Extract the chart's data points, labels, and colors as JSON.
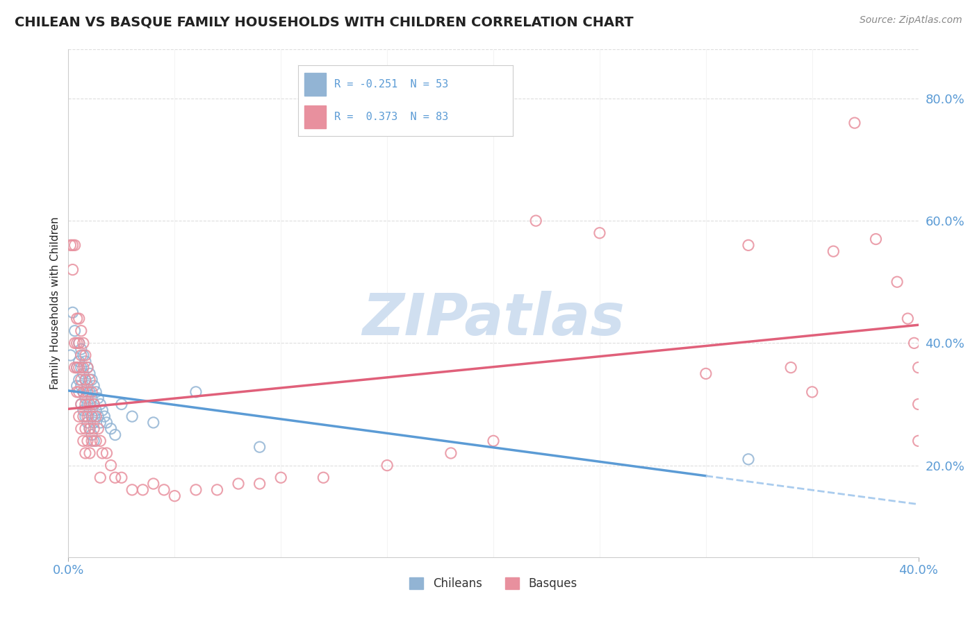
{
  "title": "CHILEAN VS BASQUE FAMILY HOUSEHOLDS WITH CHILDREN CORRELATION CHART",
  "source": "Source: ZipAtlas.com",
  "ylabel": "Family Households with Children",
  "ylabel_right_ticks": [
    "20.0%",
    "40.0%",
    "60.0%",
    "80.0%"
  ],
  "ylabel_right_vals": [
    0.2,
    0.4,
    0.6,
    0.8
  ],
  "xlim": [
    0.0,
    0.4
  ],
  "ylim": [
    0.05,
    0.88
  ],
  "color_chilean": "#92b4d4",
  "color_basque": "#e8909e",
  "line_color_chilean_solid": "#5b9bd5",
  "line_color_chilean_dash": "#aaccee",
  "line_color_basque": "#e0607a",
  "watermark": "ZIPatlas",
  "watermark_color": "#d0dff0",
  "watermark_fontsize": 60,
  "title_color": "#222222",
  "title_fontsize": 14,
  "tick_color": "#5b9bd5",
  "grid_color": "#dddddd",
  "chilean_points": [
    [
      0.001,
      0.38
    ],
    [
      0.002,
      0.45
    ],
    [
      0.003,
      0.42
    ],
    [
      0.004,
      0.36
    ],
    [
      0.004,
      0.33
    ],
    [
      0.005,
      0.4
    ],
    [
      0.005,
      0.37
    ],
    [
      0.005,
      0.34
    ],
    [
      0.006,
      0.39
    ],
    [
      0.006,
      0.36
    ],
    [
      0.006,
      0.33
    ],
    [
      0.006,
      0.3
    ],
    [
      0.007,
      0.38
    ],
    [
      0.007,
      0.35
    ],
    [
      0.007,
      0.32
    ],
    [
      0.007,
      0.29
    ],
    [
      0.008,
      0.37
    ],
    [
      0.008,
      0.34
    ],
    [
      0.008,
      0.31
    ],
    [
      0.008,
      0.28
    ],
    [
      0.009,
      0.36
    ],
    [
      0.009,
      0.33
    ],
    [
      0.009,
      0.3
    ],
    [
      0.009,
      0.27
    ],
    [
      0.01,
      0.35
    ],
    [
      0.01,
      0.32
    ],
    [
      0.01,
      0.29
    ],
    [
      0.01,
      0.26
    ],
    [
      0.011,
      0.34
    ],
    [
      0.011,
      0.31
    ],
    [
      0.011,
      0.28
    ],
    [
      0.011,
      0.25
    ],
    [
      0.012,
      0.33
    ],
    [
      0.012,
      0.3
    ],
    [
      0.012,
      0.27
    ],
    [
      0.012,
      0.24
    ],
    [
      0.013,
      0.32
    ],
    [
      0.013,
      0.29
    ],
    [
      0.014,
      0.31
    ],
    [
      0.014,
      0.28
    ],
    [
      0.015,
      0.3
    ],
    [
      0.015,
      0.27
    ],
    [
      0.016,
      0.29
    ],
    [
      0.017,
      0.28
    ],
    [
      0.018,
      0.27
    ],
    [
      0.02,
      0.26
    ],
    [
      0.022,
      0.25
    ],
    [
      0.025,
      0.3
    ],
    [
      0.03,
      0.28
    ],
    [
      0.04,
      0.27
    ],
    [
      0.06,
      0.32
    ],
    [
      0.09,
      0.23
    ],
    [
      0.32,
      0.21
    ]
  ],
  "basque_points": [
    [
      0.001,
      0.56
    ],
    [
      0.002,
      0.56
    ],
    [
      0.002,
      0.52
    ],
    [
      0.003,
      0.56
    ],
    [
      0.003,
      0.4
    ],
    [
      0.003,
      0.36
    ],
    [
      0.004,
      0.44
    ],
    [
      0.004,
      0.4
    ],
    [
      0.004,
      0.36
    ],
    [
      0.004,
      0.32
    ],
    [
      0.005,
      0.44
    ],
    [
      0.005,
      0.4
    ],
    [
      0.005,
      0.36
    ],
    [
      0.005,
      0.32
    ],
    [
      0.005,
      0.28
    ],
    [
      0.006,
      0.42
    ],
    [
      0.006,
      0.38
    ],
    [
      0.006,
      0.34
    ],
    [
      0.006,
      0.3
    ],
    [
      0.006,
      0.26
    ],
    [
      0.007,
      0.4
    ],
    [
      0.007,
      0.36
    ],
    [
      0.007,
      0.32
    ],
    [
      0.007,
      0.28
    ],
    [
      0.007,
      0.24
    ],
    [
      0.008,
      0.38
    ],
    [
      0.008,
      0.34
    ],
    [
      0.008,
      0.3
    ],
    [
      0.008,
      0.26
    ],
    [
      0.008,
      0.22
    ],
    [
      0.009,
      0.36
    ],
    [
      0.009,
      0.32
    ],
    [
      0.009,
      0.28
    ],
    [
      0.009,
      0.24
    ],
    [
      0.01,
      0.34
    ],
    [
      0.01,
      0.3
    ],
    [
      0.01,
      0.26
    ],
    [
      0.01,
      0.22
    ],
    [
      0.011,
      0.32
    ],
    [
      0.011,
      0.28
    ],
    [
      0.011,
      0.24
    ],
    [
      0.012,
      0.3
    ],
    [
      0.012,
      0.26
    ],
    [
      0.013,
      0.28
    ],
    [
      0.013,
      0.24
    ],
    [
      0.014,
      0.26
    ],
    [
      0.015,
      0.24
    ],
    [
      0.015,
      0.18
    ],
    [
      0.016,
      0.22
    ],
    [
      0.018,
      0.22
    ],
    [
      0.02,
      0.2
    ],
    [
      0.022,
      0.18
    ],
    [
      0.025,
      0.18
    ],
    [
      0.03,
      0.16
    ],
    [
      0.035,
      0.16
    ],
    [
      0.04,
      0.17
    ],
    [
      0.045,
      0.16
    ],
    [
      0.05,
      0.15
    ],
    [
      0.06,
      0.16
    ],
    [
      0.07,
      0.16
    ],
    [
      0.08,
      0.17
    ],
    [
      0.09,
      0.17
    ],
    [
      0.1,
      0.18
    ],
    [
      0.12,
      0.18
    ],
    [
      0.15,
      0.2
    ],
    [
      0.18,
      0.22
    ],
    [
      0.2,
      0.24
    ],
    [
      0.22,
      0.6
    ],
    [
      0.25,
      0.58
    ],
    [
      0.3,
      0.35
    ],
    [
      0.32,
      0.56
    ],
    [
      0.34,
      0.36
    ],
    [
      0.35,
      0.32
    ],
    [
      0.36,
      0.55
    ],
    [
      0.37,
      0.76
    ],
    [
      0.38,
      0.57
    ],
    [
      0.39,
      0.5
    ],
    [
      0.395,
      0.44
    ],
    [
      0.398,
      0.4
    ],
    [
      0.4,
      0.36
    ],
    [
      0.4,
      0.3
    ],
    [
      0.4,
      0.24
    ]
  ]
}
